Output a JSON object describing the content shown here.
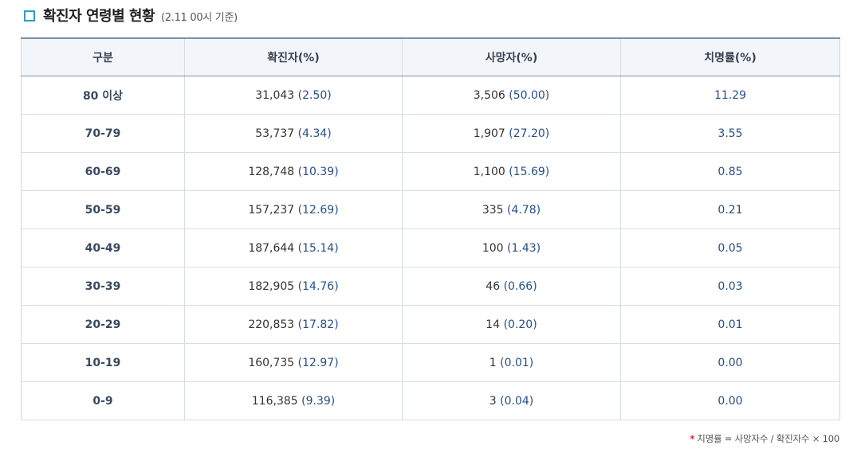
{
  "title": {
    "heading": "확진자 연령별 현황",
    "note": "(2.11 00시 기준)",
    "icon": "square-bullet-icon",
    "accent": "#2a9fbf"
  },
  "table": {
    "headers": [
      "구분",
      "확진자(%)",
      "사망자(%)",
      "치명률(%)"
    ],
    "rows": [
      {
        "age": "80 이상",
        "cases": "31,043",
        "cases_pct": "(2.50)",
        "deaths": "3,506",
        "deaths_pct": "(50.00)",
        "fatality": "11.29"
      },
      {
        "age": "70-79",
        "cases": "53,737",
        "cases_pct": "(4.34)",
        "deaths": "1,907",
        "deaths_pct": "(27.20)",
        "fatality": "3.55"
      },
      {
        "age": "60-69",
        "cases": "128,748",
        "cases_pct": "(10.39)",
        "deaths": "1,100",
        "deaths_pct": "(15.69)",
        "fatality": "0.85"
      },
      {
        "age": "50-59",
        "cases": "157,237",
        "cases_pct": "(12.69)",
        "deaths": "335",
        "deaths_pct": "(4.78)",
        "fatality": "0.21"
      },
      {
        "age": "40-49",
        "cases": "187,644",
        "cases_pct": "(15.14)",
        "deaths": "100",
        "deaths_pct": "(1.43)",
        "fatality": "0.05"
      },
      {
        "age": "30-39",
        "cases": "182,905",
        "cases_pct": "(14.76)",
        "deaths": "46",
        "deaths_pct": "(0.66)",
        "fatality": "0.03"
      },
      {
        "age": "20-29",
        "cases": "220,853",
        "cases_pct": "(17.82)",
        "deaths": "14",
        "deaths_pct": "(0.20)",
        "fatality": "0.01"
      },
      {
        "age": "10-19",
        "cases": "160,735",
        "cases_pct": "(12.97)",
        "deaths": "1",
        "deaths_pct": "(0.01)",
        "fatality": "0.00"
      },
      {
        "age": "0-9",
        "cases": "116,385",
        "cases_pct": "(9.39)",
        "deaths": "3",
        "deaths_pct": "(0.04)",
        "fatality": "0.00"
      }
    ]
  },
  "footnote": {
    "mark": "*",
    "text": "치명률 = 사망자수 / 확진자수 × 100"
  },
  "colors": {
    "header_bg": "#f2f6fa",
    "value_blue": "#264f86",
    "footnote_mark": "#d9252b"
  }
}
